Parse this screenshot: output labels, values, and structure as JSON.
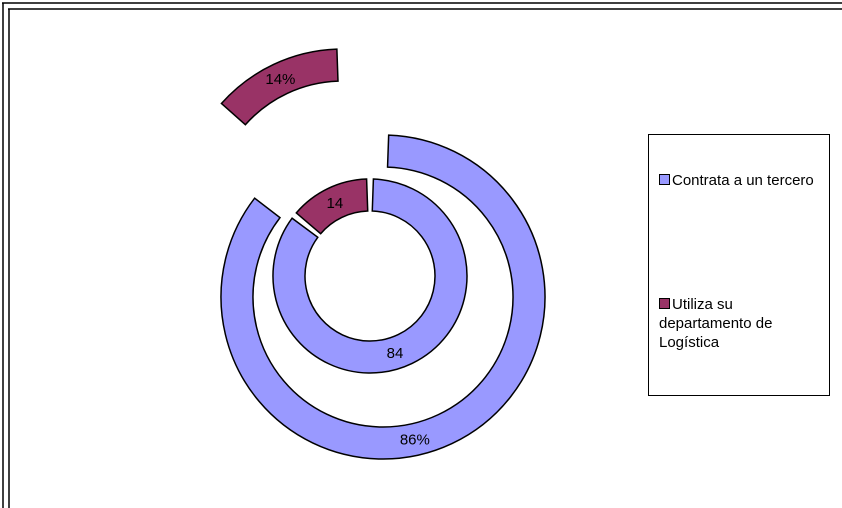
{
  "chart_data": {
    "type": "doughnut",
    "colors": {
      "contrata": "#9999ff",
      "utiliza": "#993366",
      "outline": "#000000",
      "background": "#ffffff"
    },
    "series": [
      {
        "ring": "outer",
        "values": [
          86,
          14
        ],
        "labels": [
          "86%",
          "14%"
        ],
        "exploded": [
          false,
          true
        ]
      },
      {
        "ring": "inner",
        "values": [
          84,
          14
        ],
        "labels": [
          "84",
          "14"
        ],
        "exploded": [
          false,
          false
        ]
      }
    ],
    "legend": {
      "position": "right",
      "items": [
        {
          "key": "contrata",
          "label": "Contrata a un tercero"
        },
        {
          "key": "utiliza",
          "label": "Utiliza su departamento de Logística"
        }
      ]
    }
  }
}
